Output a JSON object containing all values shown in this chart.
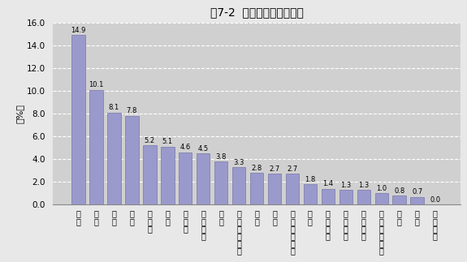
{
  "title": "図7-2  産業別製造品在庫率",
  "ylabel": "（%）",
  "categories": [
    "衣\n服",
    "窯\n業",
    "繊\n維",
    "化\n学",
    "パ\nル\nプ",
    "木\n材",
    "そ\nの\n他",
    "非\n鉄\n金\n属",
    "家\n具",
    "飲\n料\n・\nた\nば\nこ",
    "鉄\n鋼",
    "食\n料",
    "プ\nラ\nス\nチ\nッ\nク",
    "ゴ\nム",
    "電\n気\n機\n械",
    "一\n般\n機\n械",
    "電\n子\n部\n品",
    "情\n報\n通\n信\n機\n械",
    "金\n属",
    "印\n刷",
    "輸\n送\n機\n械"
  ],
  "values": [
    14.9,
    10.1,
    8.1,
    7.8,
    5.2,
    5.1,
    4.6,
    4.5,
    3.8,
    3.3,
    2.8,
    2.7,
    2.7,
    1.8,
    1.4,
    1.3,
    1.3,
    1.0,
    0.8,
    0.7,
    0.0
  ],
  "bar_color": "#9999cc",
  "bar_edge_color": "#7777aa",
  "fig_bg_color": "#e8e8e8",
  "plot_bg_color": "#d0d0d0",
  "ylim": [
    0,
    16.0
  ],
  "yticks": [
    0.0,
    2.0,
    4.0,
    6.0,
    8.0,
    10.0,
    12.0,
    14.0,
    16.0
  ],
  "grid_color": "#ffffff",
  "grid_style": "--",
  "value_fontsize": 6.0,
  "title_fontsize": 10,
  "label_fontsize": 7,
  "ytick_fontsize": 7.5
}
